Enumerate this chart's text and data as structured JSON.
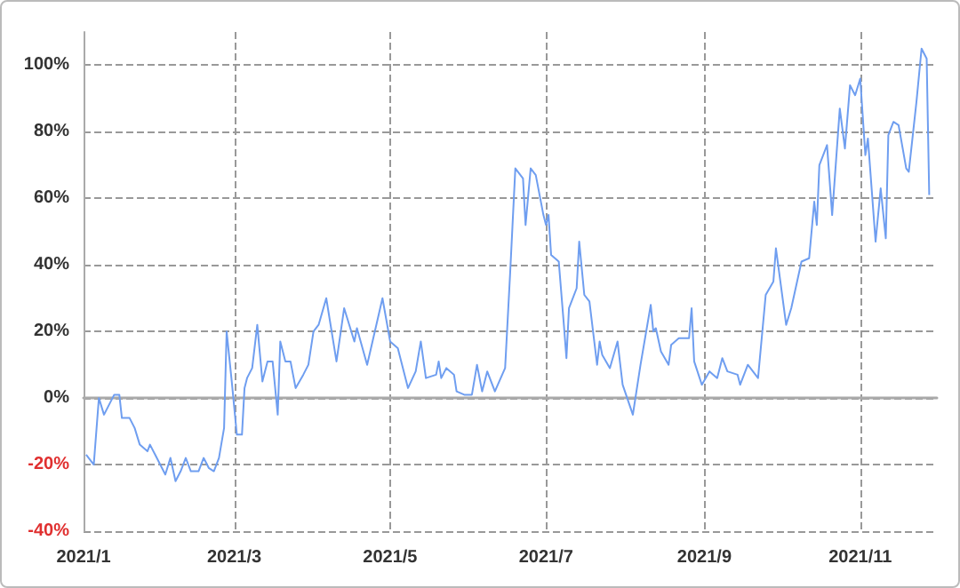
{
  "chart_data": {
    "type": "line",
    "x": [
      "2021-01-02",
      "2021-01-05",
      "2021-01-07",
      "2021-01-09",
      "2021-01-13",
      "2021-01-15",
      "2021-01-16",
      "2021-01-19",
      "2021-01-21",
      "2021-01-23",
      "2021-01-26",
      "2021-01-27",
      "2021-01-29",
      "2021-01-31",
      "2021-02-02",
      "2021-02-04",
      "2021-02-06",
      "2021-02-08",
      "2021-02-10",
      "2021-02-12",
      "2021-02-15",
      "2021-02-17",
      "2021-02-19",
      "2021-02-21",
      "2021-02-23",
      "2021-02-25",
      "2021-02-26",
      "2021-02-28",
      "2021-03-02",
      "2021-03-04",
      "2021-03-05",
      "2021-03-06",
      "2021-03-08",
      "2021-03-10",
      "2021-03-12",
      "2021-03-14",
      "2021-03-16",
      "2021-03-18",
      "2021-03-19",
      "2021-03-21",
      "2021-03-23",
      "2021-03-25",
      "2021-03-28",
      "2021-03-30",
      "2021-04-01",
      "2021-04-03",
      "2021-04-06",
      "2021-04-10",
      "2021-04-13",
      "2021-04-15",
      "2021-04-17",
      "2021-04-18",
      "2021-04-22",
      "2021-04-28",
      "2021-05-01",
      "2021-05-04",
      "2021-05-08",
      "2021-05-11",
      "2021-05-13",
      "2021-05-15",
      "2021-05-19",
      "2021-05-20",
      "2021-05-21",
      "2021-05-23",
      "2021-05-26",
      "2021-05-27",
      "2021-05-30",
      "2021-06-02",
      "2021-06-04",
      "2021-06-06",
      "2021-06-08",
      "2021-06-11",
      "2021-06-15",
      "2021-06-17",
      "2021-06-19",
      "2021-06-22",
      "2021-06-23",
      "2021-06-25",
      "2021-06-27",
      "2021-06-30",
      "2021-07-01",
      "2021-07-02",
      "2021-07-03",
      "2021-07-06",
      "2021-07-08",
      "2021-07-09",
      "2021-07-10",
      "2021-07-13",
      "2021-07-14",
      "2021-07-16",
      "2021-07-18",
      "2021-07-21",
      "2021-07-22",
      "2021-07-23",
      "2021-07-26",
      "2021-07-29",
      "2021-07-31",
      "2021-08-04",
      "2021-08-07",
      "2021-08-11",
      "2021-08-12",
      "2021-08-13",
      "2021-08-15",
      "2021-08-18",
      "2021-08-19",
      "2021-08-22",
      "2021-08-26",
      "2021-08-27",
      "2021-08-28",
      "2021-08-31",
      "2021-09-03",
      "2021-09-06",
      "2021-09-08",
      "2021-09-10",
      "2021-09-14",
      "2021-09-15",
      "2021-09-18",
      "2021-09-22",
      "2021-09-25",
      "2021-09-28",
      "2021-09-29",
      "2021-10-03",
      "2021-10-05",
      "2021-10-09",
      "2021-10-12",
      "2021-10-14",
      "2021-10-15",
      "2021-10-16",
      "2021-10-19",
      "2021-10-21",
      "2021-10-24",
      "2021-10-26",
      "2021-10-28",
      "2021-10-30",
      "2021-11-01",
      "2021-11-03",
      "2021-11-04",
      "2021-11-07",
      "2021-11-09",
      "2021-11-11",
      "2021-11-12",
      "2021-11-14",
      "2021-11-16",
      "2021-11-19",
      "2021-11-20",
      "2021-11-23",
      "2021-11-25",
      "2021-11-27",
      "2021-11-28"
    ],
    "series": [
      {
        "color": "#6f9ef0",
        "values": [
          -17,
          -20,
          0,
          -5,
          1,
          1,
          -6,
          -6,
          -9,
          -14,
          -16,
          -14,
          -17,
          -20,
          -23,
          -18,
          -25,
          -22,
          -18,
          -22,
          -22,
          -18,
          -21,
          -22,
          -18,
          -9,
          20,
          5,
          -11,
          -11,
          3,
          6,
          9,
          22,
          5,
          11,
          11,
          -5,
          17,
          11,
          11,
          3,
          7,
          10,
          20,
          22,
          30,
          11,
          27,
          22,
          17,
          21,
          10,
          30,
          17,
          15,
          3,
          8,
          17,
          6,
          7,
          11,
          6,
          9,
          7,
          2,
          1,
          1,
          10,
          2,
          8,
          2,
          9,
          38,
          69,
          66,
          52,
          69,
          67,
          55,
          52,
          55,
          43,
          41,
          22,
          12,
          27,
          33,
          47,
          31,
          29,
          10,
          17,
          13,
          9,
          17,
          4,
          -5,
          10,
          28,
          20,
          21,
          14,
          10,
          16,
          18,
          18,
          27,
          11,
          4,
          8,
          6,
          12,
          8,
          7,
          4,
          10,
          6,
          31,
          35,
          45,
          22,
          27,
          41,
          42,
          59,
          52,
          70,
          76,
          55,
          87,
          75,
          94,
          91,
          96,
          73,
          78,
          47,
          63,
          48,
          79,
          83,
          82,
          69,
          68,
          89,
          105,
          102,
          61
        ]
      }
    ],
    "xlim": [
      "2021-01-01",
      "2021-12-01"
    ],
    "xticks": [
      {
        "value": "2021-01-01",
        "label": "2021/1"
      },
      {
        "value": "2021-03-01",
        "label": "2021/3"
      },
      {
        "value": "2021-05-01",
        "label": "2021/5"
      },
      {
        "value": "2021-07-01",
        "label": "2021/7"
      },
      {
        "value": "2021-09-01",
        "label": "2021/9"
      },
      {
        "value": "2021-11-01",
        "label": "2021/11"
      }
    ],
    "ylim": [
      -40,
      110
    ],
    "yticks": [
      {
        "value": -40,
        "label": "-40%"
      },
      {
        "value": -20,
        "label": "-20%"
      },
      {
        "value": 0,
        "label": "0%"
      },
      {
        "value": 20,
        "label": "20%"
      },
      {
        "value": 40,
        "label": "40%"
      },
      {
        "value": 60,
        "label": "60%"
      },
      {
        "value": 80,
        "label": "80%"
      },
      {
        "value": 100,
        "label": "100%"
      }
    ],
    "grid": true,
    "marker": "none",
    "line_style": "solid"
  }
}
